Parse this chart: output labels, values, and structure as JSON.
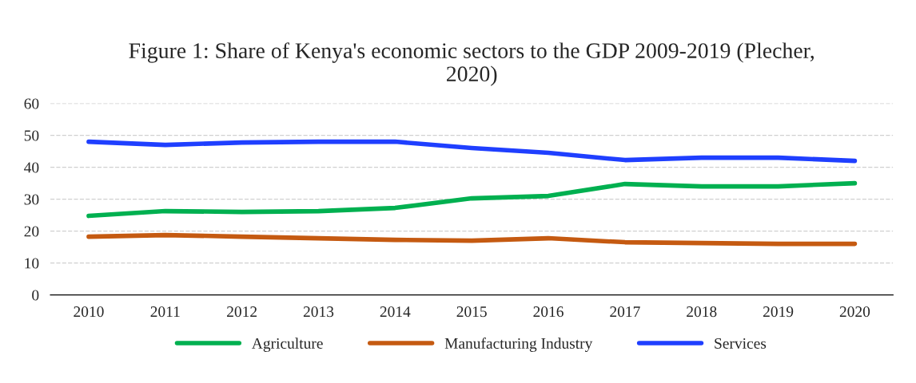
{
  "chart_data": {
    "type": "line",
    "title": "Figure 1: Share of Kenya's economic sectors to the GDP 2009-2019 (Plecher,\n2020)",
    "categories": [
      "2010",
      "2011",
      "2012",
      "2013",
      "2014",
      "2015",
      "2016",
      "2017",
      "2018",
      "2019",
      "2020"
    ],
    "series": [
      {
        "name": "Agriculture",
        "color": "#00b050",
        "values": [
          24.75,
          26.25,
          26,
          26.25,
          27.25,
          30.25,
          31,
          34.75,
          34,
          34,
          35
        ]
      },
      {
        "name": "Manufacturing Industry",
        "color": "#c55a11",
        "values": [
          18.25,
          18.75,
          18.25,
          17.75,
          17.25,
          17,
          17.75,
          16.5,
          16.25,
          16,
          16
        ]
      },
      {
        "name": "Services",
        "color": "#1f3fff",
        "values": [
          48,
          47,
          47.75,
          48,
          48,
          46,
          44.5,
          42.25,
          43,
          43,
          42
        ]
      }
    ],
    "ylim": [
      0,
      60
    ],
    "yticks": [
      0,
      10,
      20,
      30,
      40,
      50,
      60
    ],
    "grid": "y",
    "legend": "bottom",
    "marker": "none",
    "line_style": "solid"
  }
}
